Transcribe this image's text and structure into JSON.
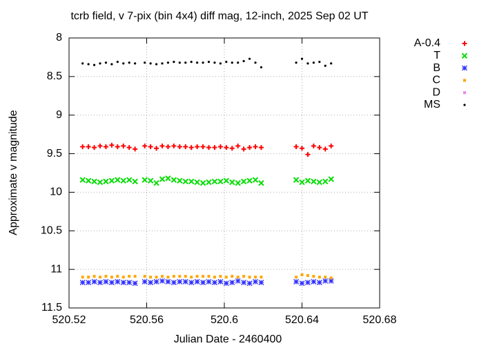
{
  "chart_data": {
    "type": "scatter",
    "title": "tcrb field, v 7-pix (bin 4x4) diff mag, 12-inch, 2025 Sep 02 UT",
    "x_label": "Julian Date - 2460400",
    "y_label": "Approximate v magnitude",
    "x": [
      520.527,
      520.53,
      520.533,
      520.536,
      520.539,
      520.542,
      520.545,
      520.548,
      520.551,
      520.554,
      520.559,
      520.562,
      520.565,
      520.568,
      520.571,
      520.574,
      520.577,
      520.58,
      520.583,
      520.586,
      520.589,
      520.592,
      520.595,
      520.598,
      520.601,
      520.604,
      520.607,
      520.61,
      520.613,
      520.616,
      520.619,
      520.637,
      520.64,
      520.643,
      520.646,
      520.649,
      520.652,
      520.655
    ],
    "series": [
      {
        "name": "A-0.4",
        "color": "#ff0000",
        "marker": "plus",
        "values": [
          9.41,
          9.41,
          9.42,
          9.4,
          9.41,
          9.39,
          9.41,
          9.4,
          9.42,
          9.44,
          9.4,
          9.41,
          9.43,
          9.4,
          9.41,
          9.4,
          9.41,
          9.41,
          9.42,
          9.41,
          9.41,
          9.42,
          9.42,
          9.41,
          9.42,
          9.43,
          9.4,
          9.44,
          9.42,
          9.41,
          9.42,
          9.41,
          9.43,
          9.51,
          9.4,
          9.42,
          9.44,
          9.4
        ]
      },
      {
        "name": "T",
        "color": "#00dd00",
        "marker": "cross",
        "values": [
          9.84,
          9.85,
          9.86,
          9.87,
          9.86,
          9.85,
          9.84,
          9.85,
          9.84,
          9.86,
          9.84,
          9.85,
          9.88,
          9.83,
          9.82,
          9.84,
          9.85,
          9.86,
          9.86,
          9.87,
          9.88,
          9.87,
          9.86,
          9.86,
          9.85,
          9.87,
          9.88,
          9.86,
          9.85,
          9.84,
          9.88,
          9.84,
          9.87,
          9.85,
          9.86,
          9.87,
          9.86,
          9.83
        ]
      },
      {
        "name": "B",
        "color": "#3030ff",
        "marker": "star",
        "values": [
          11.17,
          11.17,
          11.16,
          11.17,
          11.16,
          11.17,
          11.16,
          11.17,
          11.17,
          11.18,
          11.16,
          11.17,
          11.16,
          11.15,
          11.16,
          11.17,
          11.16,
          11.16,
          11.17,
          11.16,
          11.17,
          11.16,
          11.17,
          11.16,
          11.18,
          11.17,
          11.15,
          11.17,
          11.18,
          11.16,
          11.17,
          11.16,
          11.18,
          11.17,
          11.16,
          11.17,
          11.15,
          11.15
        ]
      },
      {
        "name": "C",
        "color": "#ffa500",
        "marker": "square",
        "values": [
          11.1,
          11.1,
          11.09,
          11.1,
          11.09,
          11.1,
          11.09,
          11.1,
          11.09,
          11.09,
          11.09,
          11.1,
          11.1,
          11.09,
          11.1,
          11.09,
          11.09,
          11.09,
          11.1,
          11.09,
          11.09,
          11.09,
          11.1,
          11.09,
          11.1,
          11.09,
          11.1,
          11.09,
          11.1,
          11.1,
          11.1,
          11.1,
          11.07,
          11.08,
          11.09,
          11.1,
          11.1,
          11.11
        ]
      },
      {
        "name": "D",
        "color": "#ee82ee",
        "marker": "square",
        "values": [
          null,
          null,
          null,
          null,
          null,
          null,
          null,
          null,
          null,
          null,
          null,
          null,
          null,
          null,
          null,
          null,
          null,
          null,
          null,
          null,
          null,
          null,
          null,
          null,
          null,
          null,
          null,
          null,
          null,
          null,
          null,
          null,
          null,
          null,
          null,
          null,
          null,
          null
        ]
      },
      {
        "name": "MS",
        "color": "#000000",
        "marker": "dot",
        "values": [
          8.33,
          8.34,
          8.35,
          8.33,
          8.32,
          8.34,
          8.31,
          8.33,
          8.32,
          8.33,
          8.32,
          8.33,
          8.34,
          8.33,
          8.32,
          8.31,
          8.32,
          8.32,
          8.31,
          8.32,
          8.32,
          8.31,
          8.32,
          8.33,
          8.31,
          8.32,
          8.32,
          8.3,
          8.27,
          8.32,
          8.38,
          8.32,
          8.27,
          8.33,
          8.32,
          8.31,
          8.36,
          8.33
        ]
      }
    ],
    "xlim": [
      520.52,
      520.68
    ],
    "xticks": [
      520.52,
      520.56,
      520.6,
      520.64,
      520.68
    ],
    "ylim": [
      8,
      11.5
    ],
    "yticks": [
      8,
      8.5,
      9,
      9.5,
      10,
      10.5,
      11,
      11.5
    ],
    "y_reversed": true,
    "grid": true,
    "legend": "right"
  }
}
